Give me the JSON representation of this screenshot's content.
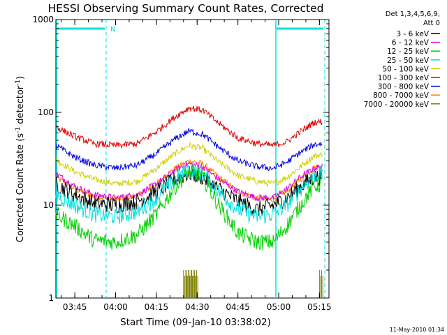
{
  "chart_data": {
    "type": "line",
    "title": "HESSI Observing Summary Count Rates, Corrected",
    "xlabel": "Start Time (09-Jan-10 03:38:02)",
    "ylabel_main": "Corrected Count Rate (s",
    "ylabel_sup1": "-1",
    "ylabel_mid": " detector",
    "ylabel_sup2": "-1",
    "ylabel_end": ")",
    "yscale": "log",
    "ylim": [
      1,
      1000
    ],
    "xlim": [
      "03:38:02",
      "05:18:30"
    ],
    "x_ticks": [
      "03:45",
      "04:00",
      "04:15",
      "04:30",
      "04:45",
      "05:00",
      "05:15"
    ],
    "y_ticks": [
      "1",
      "10",
      "100",
      "1000"
    ],
    "legend": {
      "title_line1": "Det 1,3,4,5,6,9,",
      "title_line2": "Att 0",
      "placement": "right"
    },
    "night_label": "N",
    "series": [
      {
        "name": "3 - 6 keV",
        "color": "#000000",
        "points": [
          [
            "03:38:02",
            17
          ],
          [
            "03:45",
            13
          ],
          [
            "03:52",
            10.5
          ],
          [
            "04:00",
            10
          ],
          [
            "04:08",
            11
          ],
          [
            "04:15",
            14
          ],
          [
            "04:22",
            19
          ],
          [
            "04:27",
            22
          ],
          [
            "04:32",
            20
          ],
          [
            "04:38",
            15
          ],
          [
            "04:45",
            11
          ],
          [
            "04:52",
            9
          ],
          [
            "04:58",
            10
          ],
          [
            "05:03",
            12
          ],
          [
            "05:08",
            16
          ],
          [
            "05:13",
            20
          ],
          [
            "05:16",
            20
          ]
        ]
      },
      {
        "name": "6 - 12 keV",
        "color": "#e000e0",
        "points": [
          [
            "03:38:02",
            22
          ],
          [
            "03:45",
            16
          ],
          [
            "03:52",
            13
          ],
          [
            "04:00",
            12
          ],
          [
            "04:08",
            13
          ],
          [
            "04:15",
            17
          ],
          [
            "04:22",
            24
          ],
          [
            "04:27",
            28
          ],
          [
            "04:32",
            26
          ],
          [
            "04:38",
            19
          ],
          [
            "04:45",
            14
          ],
          [
            "04:52",
            12
          ],
          [
            "04:58",
            12
          ],
          [
            "05:03",
            15
          ],
          [
            "05:08",
            20
          ],
          [
            "05:13",
            25
          ],
          [
            "05:16",
            26
          ]
        ]
      },
      {
        "name": "12 - 25 keV",
        "color": "#00d000",
        "points": [
          [
            "03:38:02",
            8
          ],
          [
            "03:45",
            6
          ],
          [
            "03:52",
            4.2
          ],
          [
            "04:00",
            4
          ],
          [
            "04:08",
            4.8
          ],
          [
            "04:15",
            8
          ],
          [
            "04:22",
            16
          ],
          [
            "04:27",
            23
          ],
          [
            "04:32",
            20
          ],
          [
            "04:38",
            10
          ],
          [
            "04:45",
            5
          ],
          [
            "04:52",
            4
          ],
          [
            "04:58",
            4
          ],
          [
            "05:03",
            6
          ],
          [
            "05:08",
            10
          ],
          [
            "05:13",
            16
          ],
          [
            "05:16",
            17
          ]
        ]
      },
      {
        "name": "25 - 50 keV",
        "color": "#00e0e0",
        "points": [
          [
            "03:38:02",
            13
          ],
          [
            "03:45",
            10
          ],
          [
            "03:52",
            8
          ],
          [
            "04:00",
            7.5
          ],
          [
            "04:08",
            8.5
          ],
          [
            "04:15",
            12
          ],
          [
            "04:22",
            19
          ],
          [
            "04:27",
            25
          ],
          [
            "04:32",
            22
          ],
          [
            "04:38",
            14
          ],
          [
            "04:45",
            9
          ],
          [
            "04:52",
            7.5
          ],
          [
            "04:58",
            8
          ],
          [
            "05:03",
            10
          ],
          [
            "05:08",
            15
          ],
          [
            "05:13",
            21
          ],
          [
            "05:16",
            22
          ]
        ]
      },
      {
        "name": "50 - 100 keV",
        "color": "#d0d000",
        "points": [
          [
            "03:38:02",
            31
          ],
          [
            "03:45",
            23
          ],
          [
            "03:52",
            19
          ],
          [
            "04:00",
            17
          ],
          [
            "04:08",
            18
          ],
          [
            "04:15",
            25
          ],
          [
            "04:22",
            36
          ],
          [
            "04:27",
            44
          ],
          [
            "04:32",
            41
          ],
          [
            "04:38",
            29
          ],
          [
            "04:45",
            21
          ],
          [
            "04:52",
            18
          ],
          [
            "04:58",
            17
          ],
          [
            "05:03",
            20
          ],
          [
            "05:08",
            26
          ],
          [
            "05:13",
            34
          ],
          [
            "05:16",
            35
          ]
        ]
      },
      {
        "name": "100 - 300 keV",
        "color": "#e00000",
        "points": [
          [
            "03:38:02",
            70
          ],
          [
            "03:45",
            55
          ],
          [
            "03:52",
            46
          ],
          [
            "04:00",
            44
          ],
          [
            "04:08",
            46
          ],
          [
            "04:15",
            62
          ],
          [
            "04:22",
            90
          ],
          [
            "04:27",
            112
          ],
          [
            "04:32",
            106
          ],
          [
            "04:38",
            76
          ],
          [
            "04:45",
            53
          ],
          [
            "04:52",
            46
          ],
          [
            "04:58",
            44
          ],
          [
            "05:03",
            48
          ],
          [
            "05:08",
            62
          ],
          [
            "05:13",
            78
          ],
          [
            "05:16",
            80
          ]
        ]
      },
      {
        "name": "300 - 800 keV",
        "color": "#0000e0",
        "points": [
          [
            "03:38:02",
            44
          ],
          [
            "03:45",
            33
          ],
          [
            "03:52",
            27
          ],
          [
            "04:00",
            25
          ],
          [
            "04:08",
            27
          ],
          [
            "04:15",
            36
          ],
          [
            "04:22",
            52
          ],
          [
            "04:27",
            63
          ],
          [
            "04:32",
            58
          ],
          [
            "04:38",
            42
          ],
          [
            "04:45",
            30
          ],
          [
            "04:52",
            26
          ],
          [
            "04:58",
            25
          ],
          [
            "05:03",
            29
          ],
          [
            "05:08",
            37
          ],
          [
            "05:13",
            45
          ],
          [
            "05:16",
            46
          ]
        ]
      },
      {
        "name": "800 - 7000 keV",
        "color": "#ff8000",
        "points": [
          [
            "03:38:02",
            20
          ],
          [
            "03:45",
            15
          ],
          [
            "03:52",
            12.5
          ],
          [
            "04:00",
            11.5
          ],
          [
            "04:08",
            12.5
          ],
          [
            "04:15",
            17
          ],
          [
            "04:22",
            25
          ],
          [
            "04:27",
            30
          ],
          [
            "04:32",
            28
          ],
          [
            "04:38",
            20
          ],
          [
            "04:45",
            14
          ],
          [
            "04:52",
            12
          ],
          [
            "04:58",
            11.5
          ],
          [
            "05:03",
            14
          ],
          [
            "05:08",
            19
          ],
          [
            "05:13",
            25
          ],
          [
            "05:16",
            27
          ]
        ]
      },
      {
        "name": "7000 - 20000 keV",
        "color": "#808000",
        "points": [
          [
            "04:25",
            2
          ],
          [
            "04:25",
            1
          ],
          [
            "04:26",
            2
          ],
          [
            "04:26",
            1
          ],
          [
            "04:27",
            2
          ],
          [
            "04:27",
            1
          ],
          [
            "04:28",
            2
          ],
          [
            "04:28",
            1
          ],
          [
            "04:29",
            2
          ],
          [
            "04:29",
            1
          ],
          [
            "05:15",
            2
          ],
          [
            "05:15",
            1
          ]
        ]
      }
    ]
  },
  "timestamp": "11-May-2010 01:34"
}
